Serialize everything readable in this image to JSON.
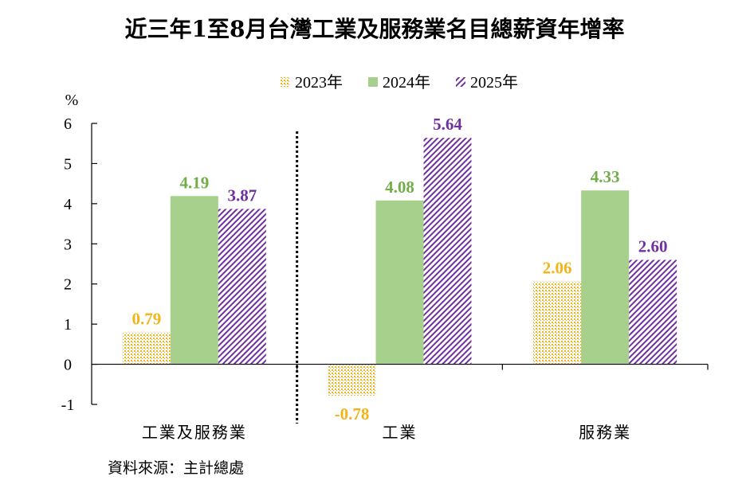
{
  "chart_data": {
    "type": "bar",
    "title": "近三年1至8月台灣工業及服務業名目總薪資年增率",
    "ylabel": "%",
    "xlabel": "",
    "ylim": [
      -1,
      6
    ],
    "yticks": [
      "6",
      "5",
      "4",
      "3",
      "2",
      "1",
      "0",
      "-1"
    ],
    "ytick_values": [
      6,
      5,
      4,
      3,
      2,
      1,
      0,
      -1
    ],
    "categories": [
      "工業及服務業",
      "工業",
      "服務業"
    ],
    "series": [
      {
        "name": "2023年",
        "values": [
          0.79,
          -0.78,
          2.06
        ],
        "labels": [
          "0.79",
          "-0.78",
          "2.06"
        ],
        "color": "#F2B418",
        "pattern": "dots"
      },
      {
        "name": "2024年",
        "values": [
          4.19,
          4.08,
          4.33
        ],
        "labels": [
          "4.19",
          "4.08",
          "4.33"
        ],
        "color": "#A6D08C",
        "pattern": "solid"
      },
      {
        "name": "2025年",
        "values": [
          3.87,
          5.64,
          2.6
        ],
        "labels": [
          "3.87",
          "5.64",
          "2.60"
        ],
        "color": "#7030A0",
        "pattern": "diagonal"
      }
    ],
    "legend_position": "top-center",
    "grid": false,
    "divider_after_category": 0,
    "source": "資料來源：主計總處"
  }
}
